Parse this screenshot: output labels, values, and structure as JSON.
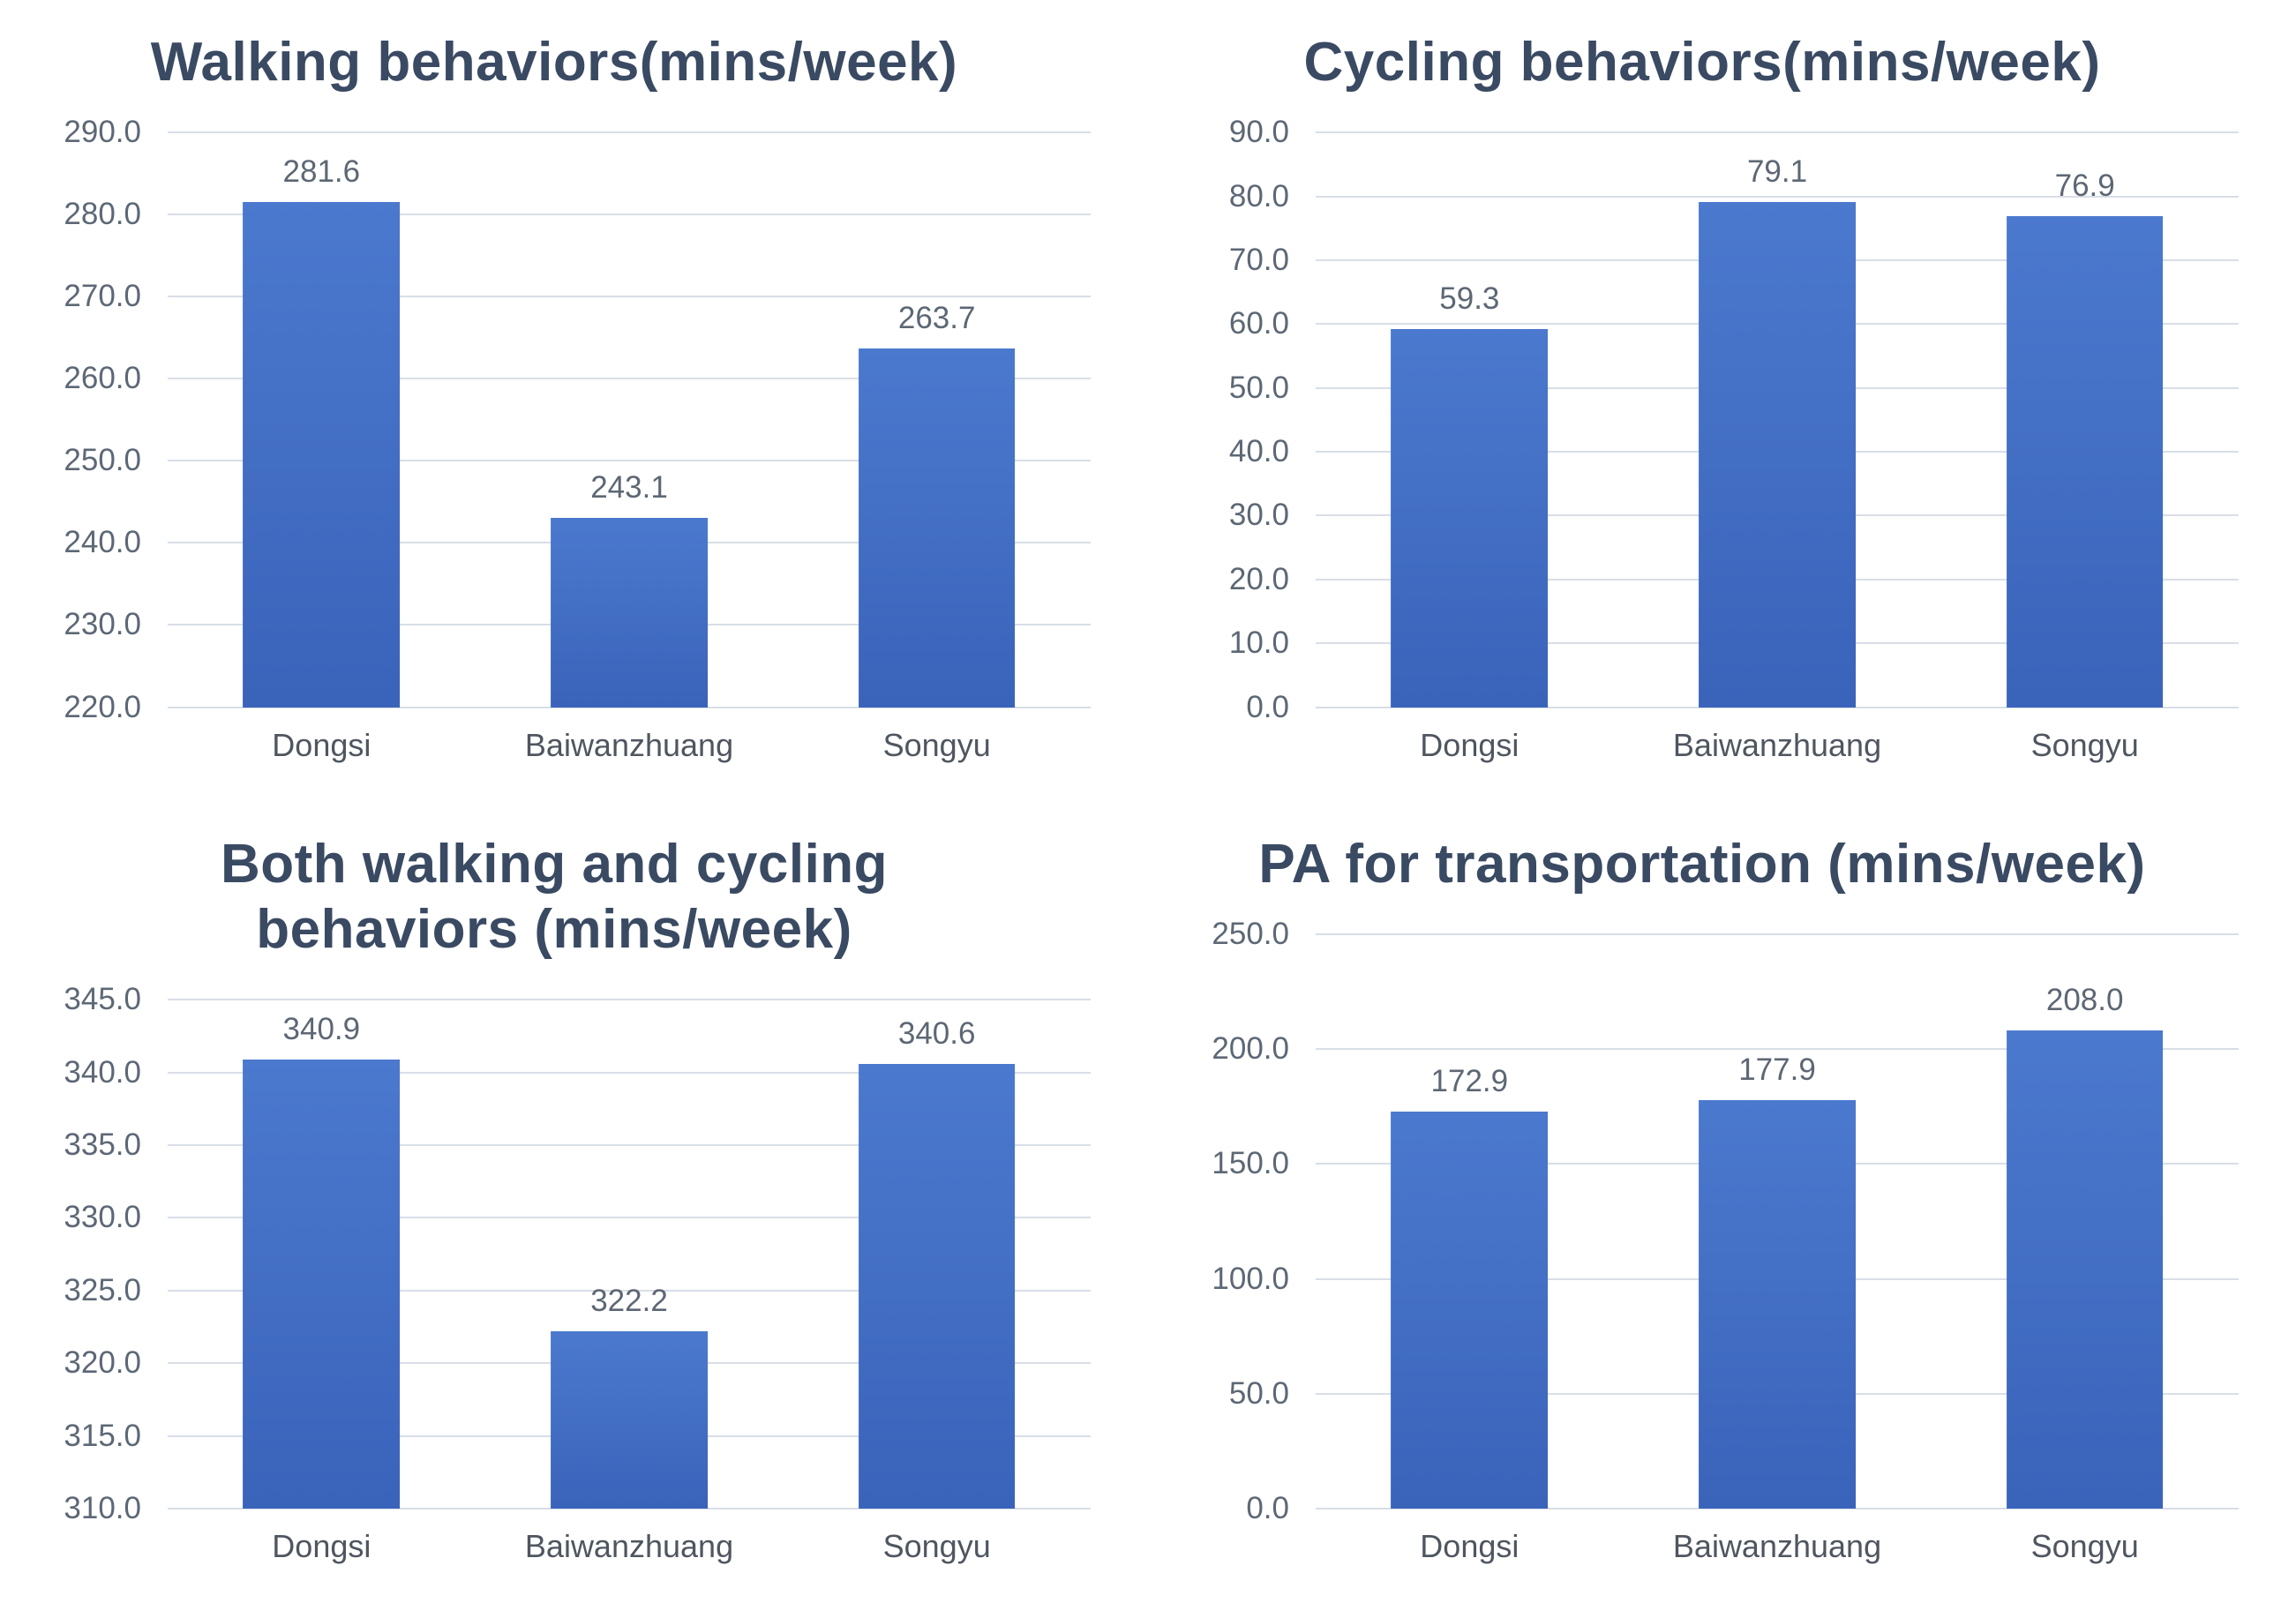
{
  "page": {
    "background": "#ffffff",
    "layout": "2x2 grid of bar charts"
  },
  "style": {
    "bar_gradient_top": "#4b79ce",
    "bar_gradient_bottom": "#3a63ba",
    "title_color": "#3a4a63",
    "axis_label_color": "#5d6876",
    "value_label_color": "#5d6774",
    "category_label_color": "#4f5660",
    "gridline_color": "#d9dee7"
  },
  "chart_data": [
    {
      "type": "bar",
      "title": "Walking behaviors(mins/week)",
      "title_lines": [
        "Walking behaviors(mins/week)"
      ],
      "categories": [
        "Dongsi",
        "Baiwanzhuang",
        "Songyu"
      ],
      "values": [
        281.6,
        243.1,
        263.7
      ],
      "value_labels": [
        "281.6",
        "243.1",
        "263.7"
      ],
      "ylim": [
        220,
        290
      ],
      "ytick_step": 10,
      "ytick_labels": [
        "290.0",
        "280.0",
        "270.0",
        "260.0",
        "250.0",
        "240.0",
        "230.0",
        "220.0"
      ],
      "xlabel": "",
      "ylabel": "",
      "grid": true,
      "legend": "none"
    },
    {
      "type": "bar",
      "title": "Cycling behaviors(mins/week)",
      "title_lines": [
        "Cycling behaviors(mins/week)"
      ],
      "categories": [
        "Dongsi",
        "Baiwanzhuang",
        "Songyu"
      ],
      "values": [
        59.3,
        79.1,
        76.9
      ],
      "value_labels": [
        "59.3",
        "79.1",
        "76.9"
      ],
      "ylim": [
        0,
        90
      ],
      "ytick_step": 10,
      "ytick_labels": [
        "90.0",
        "80.0",
        "70.0",
        "60.0",
        "50.0",
        "40.0",
        "30.0",
        "20.0",
        "10.0",
        "0.0"
      ],
      "xlabel": "",
      "ylabel": "",
      "grid": true,
      "legend": "none"
    },
    {
      "type": "bar",
      "title": "Both walking and cycling behaviors (mins/week)",
      "title_lines": [
        "Both walking and cycling",
        "behaviors (mins/week)"
      ],
      "categories": [
        "Dongsi",
        "Baiwanzhuang",
        "Songyu"
      ],
      "values": [
        340.9,
        322.2,
        340.6
      ],
      "value_labels": [
        "340.9",
        "322.2",
        "340.6"
      ],
      "ylim": [
        310,
        345
      ],
      "ytick_step": 5,
      "ytick_labels": [
        "345.0",
        "340.0",
        "335.0",
        "330.0",
        "325.0",
        "320.0",
        "315.0",
        "310.0"
      ],
      "xlabel": "",
      "ylabel": "",
      "grid": true,
      "legend": "none"
    },
    {
      "type": "bar",
      "title": "PA for transportation (mins/week)",
      "title_lines": [
        "PA for transportation (mins/week)"
      ],
      "categories": [
        "Dongsi",
        "Baiwanzhuang",
        "Songyu"
      ],
      "values": [
        172.9,
        177.9,
        208.0
      ],
      "value_labels": [
        "172.9",
        "177.9",
        "208.0"
      ],
      "ylim": [
        0,
        250
      ],
      "ytick_step": 50,
      "ytick_labels": [
        "250.0",
        "200.0",
        "150.0",
        "100.0",
        "50.0",
        "0.0"
      ],
      "xlabel": "",
      "ylabel": "",
      "grid": true,
      "legend": "none"
    }
  ]
}
